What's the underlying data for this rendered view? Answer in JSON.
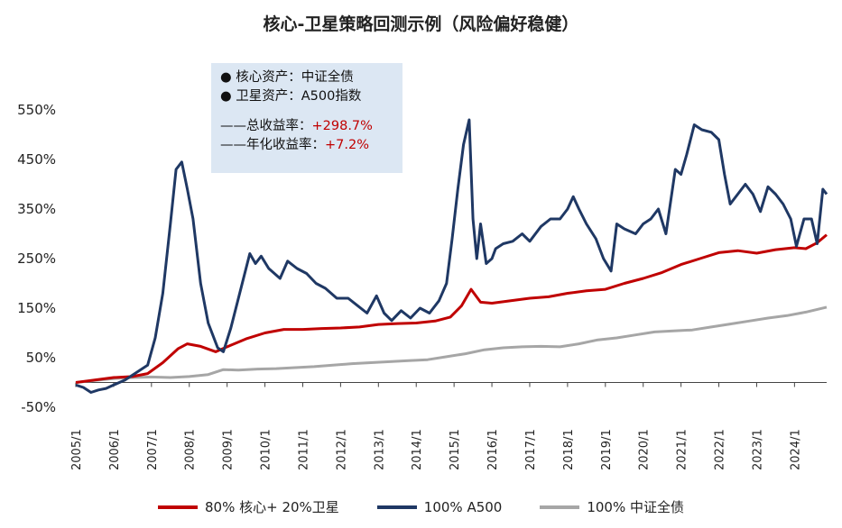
{
  "title": "核心-卫星策略回测示例（风险偏好稳健）",
  "info": {
    "core": "● 核心资产：中证全债",
    "satellite": "● 卫星资产：A500指数",
    "total_return_label": "——总收益率：",
    "total_return_value": "+298.7%",
    "annual_return_label": "——年化收益率：",
    "annual_return_value": "+7.2%"
  },
  "chart_data": {
    "type": "line",
    "title": "核心-卫星策略回测示例（风险偏好稳健）",
    "xlabel": "",
    "ylabel": "",
    "ylim": [
      -50,
      560
    ],
    "yticks": [
      -50,
      50,
      150,
      250,
      350,
      450,
      550
    ],
    "ytick_labels": [
      "-50%",
      "50%",
      "150%",
      "250%",
      "350%",
      "450%",
      "550%"
    ],
    "xticks": [
      "2005/1",
      "2006/1",
      "2007/1",
      "2008/1",
      "2009/1",
      "2010/1",
      "2011/1",
      "2012/1",
      "2013/1",
      "2014/1",
      "2015/1",
      "2016/1",
      "2017/1",
      "2018/1",
      "2019/1",
      "2020/1",
      "2021/1",
      "2022/1",
      "2023/1",
      "2024/1"
    ],
    "xrange": [
      2005.0,
      2024.85
    ],
    "grid": false,
    "legend_position": "bottom",
    "series": [
      {
        "name": "80% 核心+ 20%卫星",
        "color": "#c00000",
        "x": [
          2005.0,
          2005.5,
          2006.0,
          2006.5,
          2006.9,
          2007.3,
          2007.7,
          2007.95,
          2008.3,
          2008.7,
          2009.0,
          2009.5,
          2010.0,
          2010.5,
          2011.0,
          2011.5,
          2012.0,
          2012.5,
          2013.0,
          2013.5,
          2014.0,
          2014.5,
          2014.9,
          2015.2,
          2015.45,
          2015.7,
          2016.0,
          2016.5,
          2017.0,
          2017.5,
          2018.0,
          2018.5,
          2019.0,
          2019.5,
          2020.0,
          2020.5,
          2021.0,
          2021.5,
          2022.0,
          2022.5,
          2023.0,
          2023.5,
          2024.0,
          2024.3,
          2024.6,
          2024.85
        ],
        "values": [
          0,
          5,
          10,
          12,
          18,
          40,
          68,
          78,
          73,
          62,
          72,
          88,
          100,
          107,
          107,
          109,
          110,
          112,
          117,
          119,
          120,
          124,
          132,
          155,
          188,
          162,
          160,
          165,
          170,
          173,
          180,
          185,
          188,
          200,
          210,
          222,
          238,
          250,
          262,
          266,
          261,
          268,
          272,
          270,
          282,
          298
        ]
      },
      {
        "name": "100% A500",
        "color": "#1f3864",
        "x": [
          2005.0,
          2005.2,
          2005.4,
          2005.6,
          2005.8,
          2006.0,
          2006.3,
          2006.6,
          2006.9,
          2007.1,
          2007.3,
          2007.5,
          2007.65,
          2007.8,
          2007.95,
          2008.1,
          2008.3,
          2008.5,
          2008.75,
          2008.9,
          2009.1,
          2009.4,
          2009.6,
          2009.75,
          2009.9,
          2010.1,
          2010.4,
          2010.6,
          2010.85,
          2011.1,
          2011.35,
          2011.6,
          2011.9,
          2012.2,
          2012.45,
          2012.7,
          2012.95,
          2013.15,
          2013.35,
          2013.6,
          2013.85,
          2014.1,
          2014.35,
          2014.6,
          2014.8,
          2014.95,
          2015.1,
          2015.25,
          2015.4,
          2015.5,
          2015.6,
          2015.7,
          2015.85,
          2016.0,
          2016.1,
          2016.3,
          2016.55,
          2016.8,
          2017.0,
          2017.3,
          2017.55,
          2017.8,
          2018.0,
          2018.15,
          2018.3,
          2018.5,
          2018.75,
          2018.95,
          2019.15,
          2019.3,
          2019.5,
          2019.8,
          2020.0,
          2020.2,
          2020.4,
          2020.6,
          2020.85,
          2021.0,
          2021.15,
          2021.35,
          2021.55,
          2021.8,
          2022.0,
          2022.15,
          2022.3,
          2022.5,
          2022.7,
          2022.9,
          2023.1,
          2023.3,
          2023.5,
          2023.7,
          2023.9,
          2024.05,
          2024.25,
          2024.45,
          2024.6,
          2024.75,
          2024.85
        ],
        "values": [
          -5,
          -10,
          -20,
          -15,
          -12,
          -5,
          5,
          20,
          35,
          90,
          180,
          320,
          430,
          445,
          390,
          330,
          200,
          120,
          70,
          62,
          110,
          200,
          260,
          240,
          255,
          230,
          210,
          245,
          230,
          220,
          200,
          190,
          170,
          170,
          155,
          140,
          175,
          140,
          125,
          145,
          130,
          150,
          140,
          165,
          200,
          290,
          390,
          480,
          530,
          330,
          250,
          320,
          240,
          250,
          270,
          280,
          285,
          300,
          285,
          315,
          330,
          330,
          350,
          375,
          350,
          320,
          290,
          250,
          225,
          320,
          310,
          300,
          320,
          330,
          350,
          300,
          430,
          420,
          460,
          520,
          510,
          505,
          490,
          420,
          360,
          380,
          400,
          380,
          345,
          395,
          380,
          360,
          330,
          275,
          330,
          330,
          280,
          390,
          380
        ]
      },
      {
        "name": "100% 中证全债",
        "color": "#a6a6a6",
        "x": [
          2005.0,
          2005.5,
          2006.0,
          2006.5,
          2007.0,
          2007.5,
          2008.0,
          2008.5,
          2008.9,
          2009.3,
          2009.8,
          2010.3,
          2010.8,
          2011.3,
          2011.8,
          2012.3,
          2012.8,
          2013.3,
          2013.8,
          2014.3,
          2014.8,
          2015.3,
          2015.8,
          2016.3,
          2016.8,
          2017.3,
          2017.8,
          2018.3,
          2018.8,
          2019.3,
          2019.8,
          2020.3,
          2020.8,
          2021.3,
          2021.8,
          2022.3,
          2022.8,
          2023.3,
          2023.8,
          2024.3,
          2024.85
        ],
        "values": [
          0,
          4,
          8,
          10,
          11,
          10,
          12,
          16,
          26,
          25,
          27,
          28,
          30,
          32,
          35,
          38,
          40,
          42,
          44,
          46,
          52,
          58,
          66,
          70,
          72,
          73,
          72,
          78,
          86,
          90,
          96,
          102,
          104,
          106,
          112,
          118,
          124,
          130,
          135,
          142,
          152
        ]
      }
    ]
  }
}
